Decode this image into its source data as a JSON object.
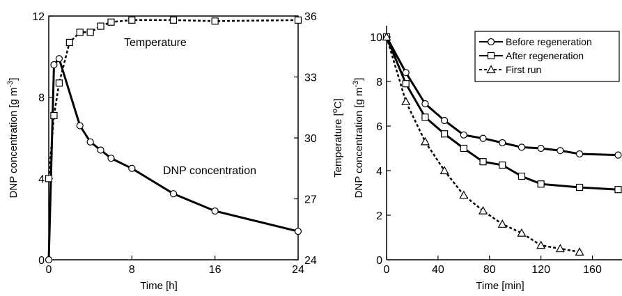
{
  "chart_data": [
    {
      "type": "line",
      "xlabel": "Time [h]",
      "ylabel": "DNP concentration [g m-3]",
      "y2label": "Temperature [oC]",
      "xlim": [
        0,
        24
      ],
      "ylim": [
        0,
        12
      ],
      "y2lim": [
        24,
        36
      ],
      "xticks": [
        "0",
        "8",
        "16",
        "24"
      ],
      "yticks": [
        "0",
        "4",
        "8",
        "12"
      ],
      "y2ticks": [
        "24",
        "27",
        "30",
        "33",
        "36"
      ],
      "annotations": [
        "Temperature",
        "DNP concentration"
      ],
      "series": [
        {
          "name": "DNP concentration",
          "axis": "left",
          "marker": "circle",
          "line": "solid",
          "x": [
            0,
            0.5,
            1,
            3,
            4,
            5,
            6,
            8,
            12,
            16,
            24
          ],
          "y": [
            0,
            9.6,
            9.9,
            6.6,
            5.8,
            5.4,
            5.0,
            4.5,
            3.25,
            2.4,
            1.4
          ]
        },
        {
          "name": "Temperature",
          "axis": "right",
          "marker": "square",
          "line": "dashed",
          "x": [
            0,
            0.5,
            1,
            2,
            3,
            4,
            5,
            6,
            8,
            12,
            16,
            24
          ],
          "y": [
            28.0,
            31.1,
            32.7,
            34.7,
            35.2,
            35.2,
            35.5,
            35.7,
            35.8,
            35.8,
            35.75,
            35.8
          ]
        }
      ]
    },
    {
      "type": "line",
      "xlabel": "Time [min]",
      "ylabel": "DNP concentration [g m-3]",
      "xlim": [
        0,
        180
      ],
      "ylim": [
        0,
        10
      ],
      "xticks": [
        "0",
        "40",
        "80",
        "120",
        "160"
      ],
      "yticks": [
        "0",
        "2",
        "4",
        "6",
        "8",
        "10"
      ],
      "legend_position": "top-right",
      "series": [
        {
          "name": "Before regeneration",
          "marker": "circle",
          "line": "solid",
          "x": [
            0,
            15,
            30,
            45,
            60,
            75,
            90,
            105,
            120,
            135,
            150,
            180
          ],
          "y": [
            10.0,
            8.4,
            7.0,
            6.25,
            5.6,
            5.45,
            5.25,
            5.05,
            5.0,
            4.9,
            4.75,
            4.7
          ]
        },
        {
          "name": "After regeneration",
          "marker": "square",
          "line": "solid",
          "x": [
            0,
            15,
            30,
            45,
            60,
            75,
            90,
            105,
            120,
            150,
            180
          ],
          "y": [
            10.0,
            7.9,
            6.4,
            5.65,
            5.0,
            4.4,
            4.25,
            3.75,
            3.4,
            3.25,
            3.15
          ]
        },
        {
          "name": "First run",
          "marker": "triangle",
          "line": "dashed",
          "x": [
            0,
            15,
            30,
            45,
            60,
            75,
            90,
            105,
            120,
            135,
            150
          ],
          "y": [
            10.0,
            7.1,
            5.3,
            4.0,
            2.9,
            2.2,
            1.6,
            1.2,
            0.65,
            0.5,
            0.35
          ]
        }
      ]
    }
  ]
}
